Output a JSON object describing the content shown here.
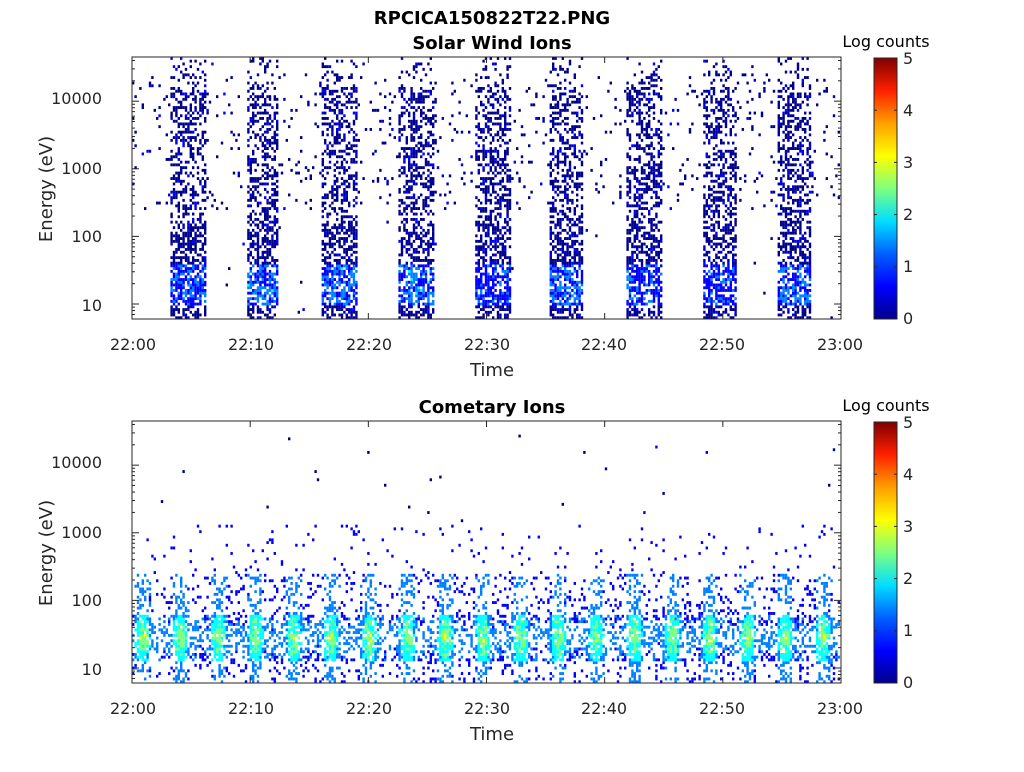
{
  "figure": {
    "title": "RPCICA150822T22.PNG"
  },
  "colormap": [
    "#00008f",
    "#0000ff",
    "#007fff",
    "#00ffff",
    "#7fff7f",
    "#ffff00",
    "#ff7f00",
    "#ff0000",
    "#7f0000"
  ],
  "chart_data": [
    {
      "type": "heatmap",
      "title": "Solar Wind Ions",
      "xlabel": "Time",
      "ylabel": "Energy (eV)",
      "x_ticks": [
        "22:00",
        "22:10",
        "22:20",
        "22:30",
        "22:40",
        "22:50",
        "23:00"
      ],
      "x_range": [
        "22:00",
        "23:00"
      ],
      "y_scale": "log",
      "y_ticks": [
        "10",
        "100",
        "1000",
        "10000"
      ],
      "y_range": [
        6,
        45000
      ],
      "colorbar": {
        "label": "Log counts",
        "ticks": [
          "0",
          "1",
          "2",
          "3",
          "4",
          "5"
        ],
        "range": [
          0,
          5
        ]
      },
      "bursts_minutes": [
        {
          "start": 3.1,
          "end": 6.2,
          "peak_log_counts": 1.4
        },
        {
          "start": 9.7,
          "end": 12.3,
          "peak_log_counts": 1.6
        },
        {
          "start": 16.0,
          "end": 19.0,
          "peak_log_counts": 1.5
        },
        {
          "start": 22.5,
          "end": 25.5,
          "peak_log_counts": 1.6
        },
        {
          "start": 29.0,
          "end": 32.0,
          "peak_log_counts": 1.2
        },
        {
          "start": 35.3,
          "end": 38.0,
          "peak_log_counts": 1.5
        },
        {
          "start": 41.8,
          "end": 44.7,
          "peak_log_counts": 1.3
        },
        {
          "start": 48.2,
          "end": 51.0,
          "peak_log_counts": 1.2
        },
        {
          "start": 54.5,
          "end": 57.3,
          "peak_log_counts": 1.4
        }
      ]
    },
    {
      "type": "heatmap",
      "title": "Cometary Ions",
      "xlabel": "Time",
      "ylabel": "Energy (eV)",
      "x_ticks": [
        "22:00",
        "22:10",
        "22:20",
        "22:30",
        "22:40",
        "22:50",
        "23:00"
      ],
      "x_range": [
        "22:00",
        "23:00"
      ],
      "y_scale": "log",
      "y_ticks": [
        "10",
        "100",
        "1000",
        "10000"
      ],
      "y_range": [
        6,
        45000
      ],
      "colorbar": {
        "label": "Log counts",
        "ticks": [
          "0",
          "1",
          "2",
          "3",
          "4",
          "5"
        ],
        "range": [
          0,
          5
        ]
      },
      "peak_energy_eV": 28,
      "peak_log_counts": 2.8,
      "pulse_period_minutes": 3.2
    }
  ]
}
